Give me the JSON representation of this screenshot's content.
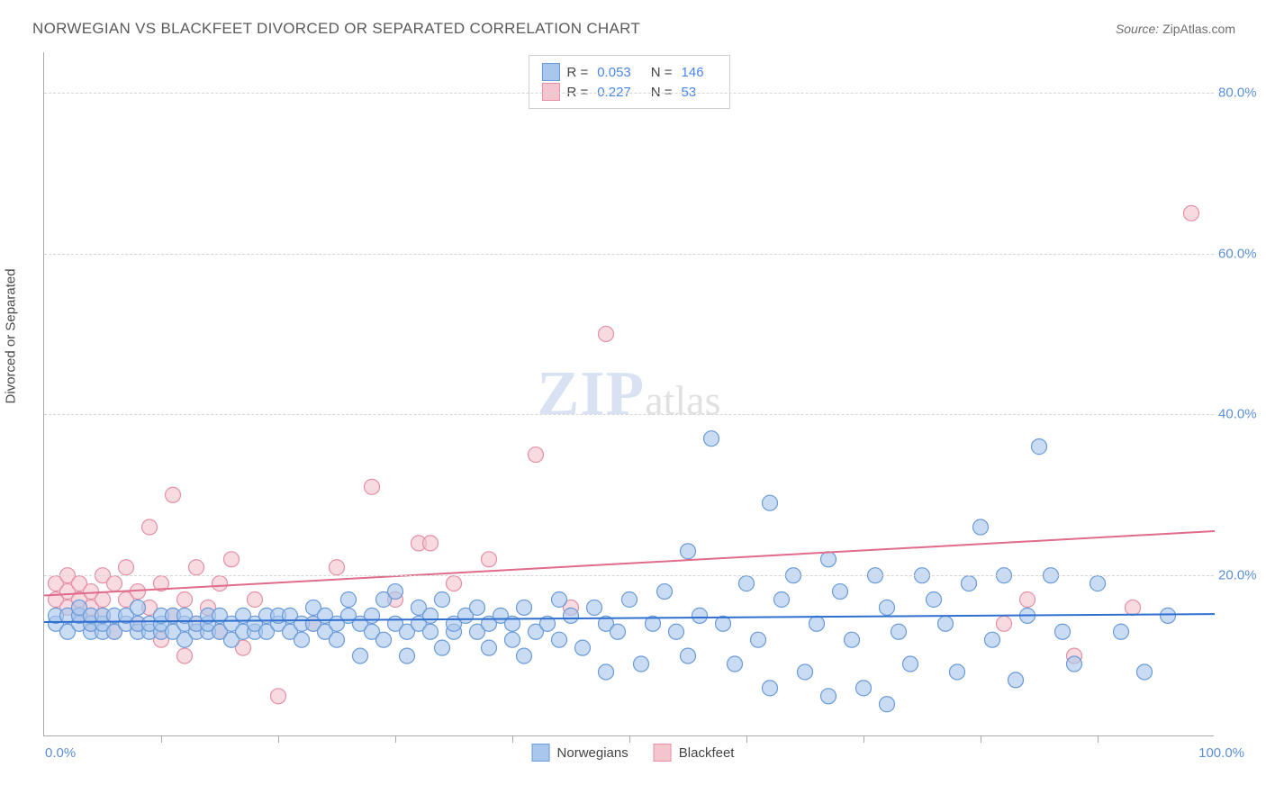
{
  "title": "NORWEGIAN VS BLACKFEET DIVORCED OR SEPARATED CORRELATION CHART",
  "source_label": "Source:",
  "source_value": "ZipAtlas.com",
  "yaxis_title": "Divorced or Separated",
  "xaxis": {
    "min_label": "0.0%",
    "max_label": "100.0%",
    "xmin": 0,
    "xmax": 100,
    "tick_positions": [
      10,
      20,
      30,
      40,
      50,
      60,
      70,
      80,
      90
    ]
  },
  "yaxis": {
    "ymin": 0,
    "ymax": 85,
    "ticks": [
      20,
      40,
      60,
      80
    ],
    "tick_labels": [
      "20.0%",
      "40.0%",
      "60.0%",
      "80.0%"
    ]
  },
  "series": {
    "norwegians": {
      "label": "Norwegians",
      "fill": "#a9c7ec",
      "stroke": "#6a9bd8",
      "fill_opacity": 0.62,
      "marker_radius": 8.5,
      "R": "0.053",
      "N": "146",
      "trend": {
        "y_at_xmin": 14.2,
        "y_at_xmax": 15.2,
        "color": "#2f6fd0",
        "width": 2
      },
      "points": [
        [
          1,
          14
        ],
        [
          1,
          15
        ],
        [
          2,
          13
        ],
        [
          2,
          15
        ],
        [
          3,
          14
        ],
        [
          3,
          15
        ],
        [
          3,
          16
        ],
        [
          4,
          13
        ],
        [
          4,
          14
        ],
        [
          4,
          15
        ],
        [
          5,
          13
        ],
        [
          5,
          14
        ],
        [
          5,
          15
        ],
        [
          6,
          13
        ],
        [
          6,
          15
        ],
        [
          7,
          14
        ],
        [
          7,
          15
        ],
        [
          8,
          13
        ],
        [
          8,
          14
        ],
        [
          8,
          16
        ],
        [
          9,
          13
        ],
        [
          9,
          14
        ],
        [
          10,
          13
        ],
        [
          10,
          14
        ],
        [
          10,
          15
        ],
        [
          11,
          13
        ],
        [
          11,
          15
        ],
        [
          12,
          12
        ],
        [
          12,
          14
        ],
        [
          12,
          15
        ],
        [
          13,
          13
        ],
        [
          13,
          14
        ],
        [
          14,
          13
        ],
        [
          14,
          14
        ],
        [
          14,
          15
        ],
        [
          15,
          13
        ],
        [
          15,
          15
        ],
        [
          16,
          12
        ],
        [
          16,
          14
        ],
        [
          17,
          13
        ],
        [
          17,
          15
        ],
        [
          18,
          13
        ],
        [
          18,
          14
        ],
        [
          19,
          13
        ],
        [
          19,
          15
        ],
        [
          20,
          14
        ],
        [
          20,
          15
        ],
        [
          21,
          13
        ],
        [
          21,
          15
        ],
        [
          22,
          12
        ],
        [
          22,
          14
        ],
        [
          23,
          14
        ],
        [
          23,
          16
        ],
        [
          24,
          13
        ],
        [
          24,
          15
        ],
        [
          25,
          14
        ],
        [
          25,
          12
        ],
        [
          26,
          15
        ],
        [
          26,
          17
        ],
        [
          27,
          14
        ],
        [
          27,
          10
        ],
        [
          28,
          13
        ],
        [
          28,
          15
        ],
        [
          29,
          12
        ],
        [
          29,
          17
        ],
        [
          30,
          14
        ],
        [
          30,
          18
        ],
        [
          31,
          13
        ],
        [
          31,
          10
        ],
        [
          32,
          14
        ],
        [
          32,
          16
        ],
        [
          33,
          13
        ],
        [
          33,
          15
        ],
        [
          34,
          11
        ],
        [
          34,
          17
        ],
        [
          35,
          13
        ],
        [
          35,
          14
        ],
        [
          36,
          15
        ],
        [
          37,
          13
        ],
        [
          37,
          16
        ],
        [
          38,
          14
        ],
        [
          38,
          11
        ],
        [
          39,
          15
        ],
        [
          40,
          14
        ],
        [
          40,
          12
        ],
        [
          41,
          10
        ],
        [
          41,
          16
        ],
        [
          42,
          13
        ],
        [
          43,
          14
        ],
        [
          44,
          12
        ],
        [
          44,
          17
        ],
        [
          45,
          15
        ],
        [
          46,
          11
        ],
        [
          47,
          16
        ],
        [
          48,
          14
        ],
        [
          48,
          8
        ],
        [
          49,
          13
        ],
        [
          50,
          17
        ],
        [
          51,
          9
        ],
        [
          52,
          14
        ],
        [
          53,
          18
        ],
        [
          54,
          13
        ],
        [
          55,
          23
        ],
        [
          55,
          10
        ],
        [
          56,
          15
        ],
        [
          57,
          37
        ],
        [
          58,
          14
        ],
        [
          59,
          9
        ],
        [
          60,
          19
        ],
        [
          61,
          12
        ],
        [
          62,
          29
        ],
        [
          62,
          6
        ],
        [
          63,
          17
        ],
        [
          64,
          20
        ],
        [
          65,
          8
        ],
        [
          66,
          14
        ],
        [
          67,
          22
        ],
        [
          67,
          5
        ],
        [
          68,
          18
        ],
        [
          69,
          12
        ],
        [
          70,
          6
        ],
        [
          71,
          20
        ],
        [
          72,
          16
        ],
        [
          72,
          4
        ],
        [
          73,
          13
        ],
        [
          74,
          9
        ],
        [
          75,
          20
        ],
        [
          76,
          17
        ],
        [
          77,
          14
        ],
        [
          78,
          8
        ],
        [
          79,
          19
        ],
        [
          80,
          26
        ],
        [
          81,
          12
        ],
        [
          82,
          20
        ],
        [
          83,
          7
        ],
        [
          84,
          15
        ],
        [
          85,
          36
        ],
        [
          86,
          20
        ],
        [
          87,
          13
        ],
        [
          88,
          9
        ],
        [
          90,
          19
        ],
        [
          92,
          13
        ],
        [
          94,
          8
        ],
        [
          96,
          15
        ]
      ]
    },
    "blackfeet": {
      "label": "Blackfeet",
      "fill": "#f4c4cf",
      "stroke": "#e590a5",
      "fill_opacity": 0.62,
      "marker_radius": 8.5,
      "R": "0.227",
      "N": "53",
      "trend": {
        "y_at_xmin": 17.5,
        "y_at_xmax": 25.5,
        "color": "#e06b8a",
        "width": 2
      },
      "points": [
        [
          1,
          17
        ],
        [
          1,
          19
        ],
        [
          2,
          16
        ],
        [
          2,
          18
        ],
        [
          2,
          20
        ],
        [
          3,
          15
        ],
        [
          3,
          17
        ],
        [
          3,
          19
        ],
        [
          4,
          16
        ],
        [
          4,
          18
        ],
        [
          4,
          14
        ],
        [
          5,
          17
        ],
        [
          5,
          20
        ],
        [
          5,
          15
        ],
        [
          6,
          19
        ],
        [
          6,
          13
        ],
        [
          7,
          17
        ],
        [
          7,
          21
        ],
        [
          8,
          14
        ],
        [
          8,
          18
        ],
        [
          9,
          26
        ],
        [
          9,
          16
        ],
        [
          10,
          12
        ],
        [
          10,
          19
        ],
        [
          11,
          30
        ],
        [
          11,
          15
        ],
        [
          12,
          17
        ],
        [
          12,
          10
        ],
        [
          13,
          21
        ],
        [
          13,
          14
        ],
        [
          14,
          16
        ],
        [
          15,
          13
        ],
        [
          15,
          19
        ],
        [
          16,
          22
        ],
        [
          17,
          11
        ],
        [
          18,
          17
        ],
        [
          20,
          5
        ],
        [
          23,
          14
        ],
        [
          25,
          21
        ],
        [
          28,
          31
        ],
        [
          30,
          17
        ],
        [
          32,
          24
        ],
        [
          33,
          24
        ],
        [
          35,
          19
        ],
        [
          38,
          22
        ],
        [
          42,
          35
        ],
        [
          45,
          16
        ],
        [
          48,
          50
        ],
        [
          82,
          14
        ],
        [
          84,
          17
        ],
        [
          88,
          10
        ],
        [
          93,
          16
        ],
        [
          98,
          65
        ]
      ]
    }
  },
  "legend_bottom": [
    {
      "key": "norwegians"
    },
    {
      "key": "blackfeet"
    }
  ],
  "watermark": {
    "part1": "ZIP",
    "part2": "atlas"
  },
  "colors": {
    "title": "#5a5a5a",
    "axis_text": "#5b8fd6",
    "grid": "#d6d6d6",
    "border": "#aaaaaa",
    "bg": "#ffffff"
  }
}
